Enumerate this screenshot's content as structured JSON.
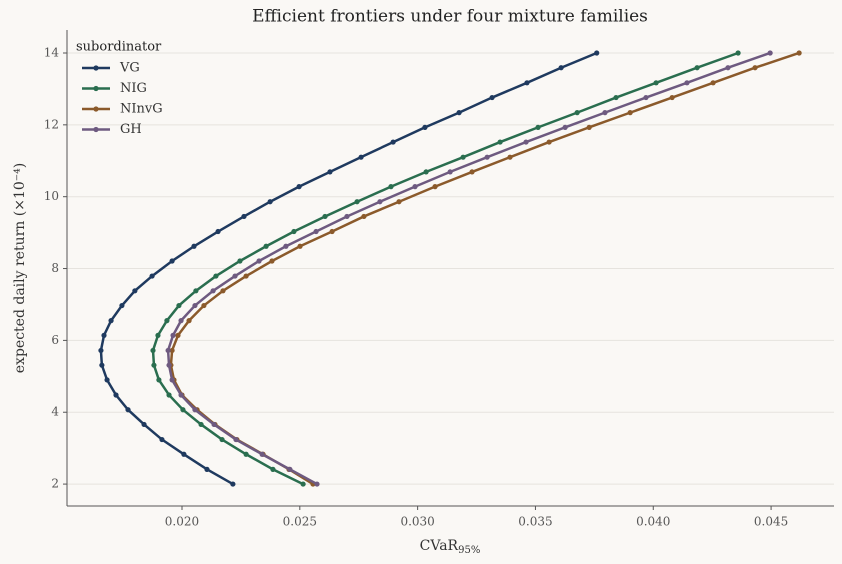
{
  "chart_data": {
    "type": "line",
    "title": "Efficient frontiers under four mixture families",
    "xlabel": "CVaR",
    "xlabel_sub": "95%",
    "ylabel": "expected daily return (×10⁻⁴)",
    "legend_title": "subordinator",
    "legend": "upper left",
    "grid": true,
    "xlim": [
      0.01512,
      0.04767
    ],
    "ylim": [
      1.39,
      14.64
    ],
    "xticks": [
      {
        "value": 0.02,
        "label": "0.020"
      },
      {
        "value": 0.025,
        "label": "0.025"
      },
      {
        "value": 0.03,
        "label": "0.030"
      },
      {
        "value": 0.035,
        "label": "0.035"
      },
      {
        "value": 0.04,
        "label": "0.040"
      },
      {
        "value": 0.045,
        "label": "0.045"
      }
    ],
    "yticks": [
      2,
      4,
      6,
      8,
      10,
      12,
      14
    ],
    "series": [
      {
        "name": "VG",
        "color": "#1f3a5f",
        "x": [
          0.02216,
          0.02106,
          0.02008,
          0.01915,
          0.01839,
          0.01771,
          0.0172,
          0.01682,
          0.0166,
          0.01656,
          0.01669,
          0.01699,
          0.01745,
          0.018,
          0.01873,
          0.01958,
          0.02051,
          0.02153,
          0.02263,
          0.02374,
          0.02497,
          0.02628,
          0.0276,
          0.02896,
          0.03031,
          0.03176,
          0.03316,
          0.03464,
          0.03609,
          0.0376
        ],
        "values": [
          2.0,
          2.41,
          2.83,
          3.24,
          3.66,
          4.07,
          4.48,
          4.9,
          5.31,
          5.72,
          6.14,
          6.55,
          6.97,
          7.38,
          7.79,
          8.21,
          8.62,
          9.03,
          9.45,
          9.86,
          10.28,
          10.69,
          11.1,
          11.52,
          11.93,
          12.34,
          12.76,
          13.17,
          13.59,
          14.0
        ]
      },
      {
        "name": "NIG",
        "color": "#2a6e4f",
        "x": [
          0.02514,
          0.02386,
          0.02272,
          0.0217,
          0.02081,
          0.02004,
          0.01945,
          0.01902,
          0.01881,
          0.01877,
          0.01898,
          0.01936,
          0.01987,
          0.02059,
          0.02144,
          0.02246,
          0.02357,
          0.02475,
          0.02607,
          0.02743,
          0.02887,
          0.03036,
          0.03193,
          0.0335,
          0.03511,
          0.03677,
          0.03842,
          0.04012,
          0.04186,
          0.0436
        ],
        "values": [
          2.0,
          2.41,
          2.83,
          3.24,
          3.66,
          4.07,
          4.48,
          4.9,
          5.31,
          5.72,
          6.14,
          6.55,
          6.97,
          7.38,
          7.79,
          8.21,
          8.62,
          9.03,
          9.45,
          9.86,
          10.28,
          10.69,
          11.1,
          11.52,
          11.93,
          12.34,
          12.76,
          13.17,
          13.59,
          14.0
        ]
      },
      {
        "name": "NInvG",
        "color": "#8b5a2b",
        "x": [
          0.02556,
          0.02454,
          0.02344,
          0.02233,
          0.0214,
          0.02064,
          0.02,
          0.01966,
          0.01953,
          0.01958,
          0.01983,
          0.0203,
          0.02093,
          0.02174,
          0.02272,
          0.02382,
          0.02501,
          0.02637,
          0.02772,
          0.02921,
          0.03074,
          0.03231,
          0.03392,
          0.03558,
          0.03728,
          0.03902,
          0.0408,
          0.04254,
          0.04432,
          0.04619
        ],
        "values": [
          2.0,
          2.41,
          2.83,
          3.24,
          3.66,
          4.07,
          4.48,
          4.9,
          5.31,
          5.72,
          6.14,
          6.55,
          6.97,
          7.38,
          7.79,
          8.21,
          8.62,
          9.03,
          9.45,
          9.86,
          10.28,
          10.69,
          11.1,
          11.52,
          11.93,
          12.34,
          12.76,
          13.17,
          13.59,
          14.0
        ]
      },
      {
        "name": "GH",
        "color": "#6e5a80",
        "x": [
          0.02573,
          0.02458,
          0.0234,
          0.02229,
          0.02136,
          0.02055,
          0.01996,
          0.01958,
          0.01945,
          0.01941,
          0.01962,
          0.01996,
          0.02055,
          0.02132,
          0.02225,
          0.02327,
          0.02441,
          0.02569,
          0.027,
          0.0284,
          0.02989,
          0.03138,
          0.03295,
          0.0346,
          0.03626,
          0.03795,
          0.03969,
          0.04143,
          0.04317,
          0.04496
        ],
        "values": [
          2.0,
          2.41,
          2.83,
          3.24,
          3.66,
          4.07,
          4.48,
          4.9,
          5.31,
          5.72,
          6.14,
          6.55,
          6.97,
          7.38,
          7.79,
          8.21,
          8.62,
          9.03,
          9.45,
          9.86,
          10.28,
          10.69,
          11.1,
          11.52,
          11.93,
          12.34,
          12.76,
          13.17,
          13.59,
          14.0
        ]
      }
    ]
  }
}
